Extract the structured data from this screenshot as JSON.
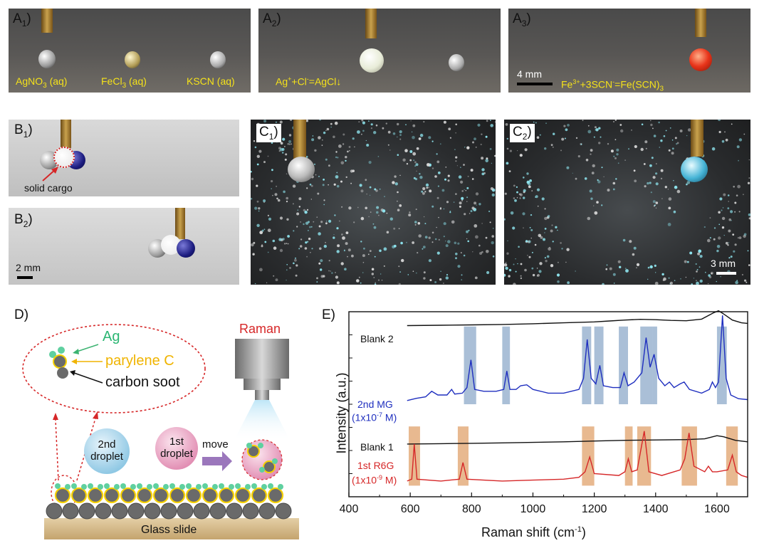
{
  "panels": {
    "A1": {
      "label": "A",
      "sub": "1",
      "suffix": ")",
      "texts": [
        {
          "pre": "AgNO",
          "sub": "3",
          "post": " (aq)"
        },
        {
          "pre": "FeCl",
          "sub": "3",
          "post": " (aq)"
        },
        {
          "pre": "KSCN",
          "sub": "",
          "post": " (aq)"
        }
      ]
    },
    "A2": {
      "label": "A",
      "sub": "2",
      "suffix": ")",
      "equation": {
        "p1": "Ag",
        "s1": "+",
        "p2": "+Cl",
        "s2": "-",
        "p3": "=AgCl↓"
      }
    },
    "A3": {
      "label": "A",
      "sub": "3",
      "suffix": ")",
      "scale": "4 mm",
      "equation": {
        "p1": "Fe",
        "s1": "3+",
        "p2": "+3SCN",
        "s2": "-",
        "p3": "=Fe(SCN)",
        "b3": "3"
      }
    },
    "B1": {
      "label": "B",
      "sub": "1",
      "suffix": ")",
      "cargo": "solid cargo"
    },
    "B2": {
      "label": "B",
      "sub": "2",
      "suffix": ")",
      "scale": "2 mm"
    },
    "C1": {
      "label": "C",
      "sub": "1",
      "suffix": ")"
    },
    "C2": {
      "label": "C",
      "sub": "2",
      "suffix": ")",
      "scale": "3 mm"
    },
    "D": {
      "label": "D)",
      "raman": "Raman",
      "ag": "Ag",
      "parylene": "parylene C",
      "soot": "carbon soot",
      "droplet2": [
        "2nd",
        "droplet"
      ],
      "droplet1": [
        "1st",
        "droplet"
      ],
      "move": "move",
      "slide": "Glass slide"
    },
    "E": {
      "label": "E)"
    }
  },
  "chart_data": {
    "type": "line",
    "xlabel": "Raman shift (cm-1)",
    "ylabel": "Intensity (a.u.)",
    "xlim": [
      400,
      1700
    ],
    "xticks": [
      400,
      600,
      800,
      1000,
      1200,
      1400,
      1600
    ],
    "series": [
      {
        "name": "Blank 2",
        "color": "#111111",
        "baseline": 0.925,
        "points": [
          [
            590,
            0.0
          ],
          [
            700,
            0.002
          ],
          [
            800,
            0.004
          ],
          [
            900,
            0.006
          ],
          [
            1000,
            0.01
          ],
          [
            1100,
            0.015
          ],
          [
            1200,
            0.02
          ],
          [
            1250,
            0.025
          ],
          [
            1300,
            0.03
          ],
          [
            1350,
            0.034
          ],
          [
            1400,
            0.032
          ],
          [
            1450,
            0.028
          ],
          [
            1500,
            0.026
          ],
          [
            1550,
            0.035
          ],
          [
            1590,
            0.07
          ],
          [
            1605,
            0.08
          ],
          [
            1620,
            0.065
          ],
          [
            1650,
            0.03
          ],
          [
            1680,
            0.015
          ],
          [
            1700,
            0.012
          ]
        ]
      },
      {
        "name": "2nd MG",
        "sublabel": "(1x10-7 M)",
        "color": "#1f2fbf",
        "baseline": 0.52,
        "points": [
          [
            590,
            0.0
          ],
          [
            620,
            0.012
          ],
          [
            650,
            0.02
          ],
          [
            670,
            0.05
          ],
          [
            690,
            0.03
          ],
          [
            720,
            0.03
          ],
          [
            735,
            0.06
          ],
          [
            745,
            0.035
          ],
          [
            770,
            0.04
          ],
          [
            785,
            0.07
          ],
          [
            798,
            0.22
          ],
          [
            810,
            0.06
          ],
          [
            840,
            0.05
          ],
          [
            880,
            0.05
          ],
          [
            905,
            0.06
          ],
          [
            915,
            0.16
          ],
          [
            925,
            0.06
          ],
          [
            945,
            0.06
          ],
          [
            960,
            0.08
          ],
          [
            980,
            0.085
          ],
          [
            1000,
            0.06
          ],
          [
            1050,
            0.04
          ],
          [
            1100,
            0.04
          ],
          [
            1150,
            0.06
          ],
          [
            1165,
            0.12
          ],
          [
            1177,
            0.33
          ],
          [
            1190,
            0.12
          ],
          [
            1205,
            0.09
          ],
          [
            1218,
            0.19
          ],
          [
            1230,
            0.08
          ],
          [
            1260,
            0.07
          ],
          [
            1285,
            0.07
          ],
          [
            1297,
            0.15
          ],
          [
            1310,
            0.08
          ],
          [
            1330,
            0.1
          ],
          [
            1355,
            0.15
          ],
          [
            1369,
            0.34
          ],
          [
            1382,
            0.18
          ],
          [
            1395,
            0.25
          ],
          [
            1410,
            0.12
          ],
          [
            1430,
            0.08
          ],
          [
            1445,
            0.1
          ],
          [
            1460,
            0.07
          ],
          [
            1480,
            0.09
          ],
          [
            1493,
            0.1
          ],
          [
            1510,
            0.06
          ],
          [
            1550,
            0.04
          ],
          [
            1575,
            0.06
          ],
          [
            1585,
            0.1
          ],
          [
            1595,
            0.07
          ],
          [
            1605,
            0.1
          ],
          [
            1618,
            0.46
          ],
          [
            1630,
            0.12
          ],
          [
            1645,
            0.03
          ],
          [
            1670,
            0.01
          ],
          [
            1700,
            0.005
          ]
        ]
      },
      {
        "name": "Blank 1",
        "color": "#111111",
        "baseline": 0.285,
        "points": [
          [
            590,
            0.0
          ],
          [
            700,
            0.002
          ],
          [
            800,
            0.004
          ],
          [
            900,
            0.006
          ],
          [
            1000,
            0.009
          ],
          [
            1100,
            0.012
          ],
          [
            1200,
            0.016
          ],
          [
            1300,
            0.02
          ],
          [
            1400,
            0.022
          ],
          [
            1500,
            0.024
          ],
          [
            1560,
            0.028
          ],
          [
            1600,
            0.045
          ],
          [
            1620,
            0.04
          ],
          [
            1660,
            0.02
          ],
          [
            1700,
            0.012
          ]
        ]
      },
      {
        "name": "1st R6G",
        "sublabel": "(1x10-9 M)",
        "color": "#d62728",
        "baseline": 0.085,
        "points": [
          [
            590,
            0.0
          ],
          [
            605,
            0.01
          ],
          [
            613,
            0.2
          ],
          [
            622,
            0.01
          ],
          [
            700,
            0.0
          ],
          [
            760,
            0.01
          ],
          [
            772,
            0.1
          ],
          [
            785,
            0.01
          ],
          [
            900,
            0.0
          ],
          [
            1000,
            0.005
          ],
          [
            1100,
            0.01
          ],
          [
            1150,
            0.02
          ],
          [
            1170,
            0.05
          ],
          [
            1185,
            0.13
          ],
          [
            1200,
            0.04
          ],
          [
            1280,
            0.03
          ],
          [
            1300,
            0.05
          ],
          [
            1311,
            0.12
          ],
          [
            1322,
            0.05
          ],
          [
            1340,
            0.06
          ],
          [
            1363,
            0.27
          ],
          [
            1378,
            0.05
          ],
          [
            1420,
            0.03
          ],
          [
            1480,
            0.06
          ],
          [
            1495,
            0.12
          ],
          [
            1509,
            0.26
          ],
          [
            1525,
            0.08
          ],
          [
            1560,
            0.05
          ],
          [
            1572,
            0.08
          ],
          [
            1585,
            0.05
          ],
          [
            1600,
            0.05
          ],
          [
            1635,
            0.06
          ],
          [
            1650,
            0.14
          ],
          [
            1663,
            0.05
          ],
          [
            1680,
            0.03
          ],
          [
            1700,
            0.02
          ]
        ]
      }
    ],
    "highlights_blue": [
      [
        775,
        815
      ],
      [
        900,
        925
      ],
      [
        1160,
        1190
      ],
      [
        1200,
        1230
      ],
      [
        1280,
        1310
      ],
      [
        1350,
        1390
      ],
      [
        1390,
        1405
      ],
      [
        1600,
        1632
      ]
    ],
    "highlights_orange": [
      [
        595,
        632
      ],
      [
        755,
        790
      ],
      [
        1160,
        1200
      ],
      [
        1300,
        1325
      ],
      [
        1340,
        1385
      ],
      [
        1485,
        1535
      ],
      [
        1630,
        1668
      ]
    ]
  },
  "colors": {
    "blue_band": "#8ea9c9",
    "orange_band": "#e0a26b",
    "yellow_text": "#f5e21a",
    "red_dot": "#d62728"
  },
  "icons": {
    "raman_head": "raman-probe-icon",
    "arrow": "move-arrow-icon"
  }
}
